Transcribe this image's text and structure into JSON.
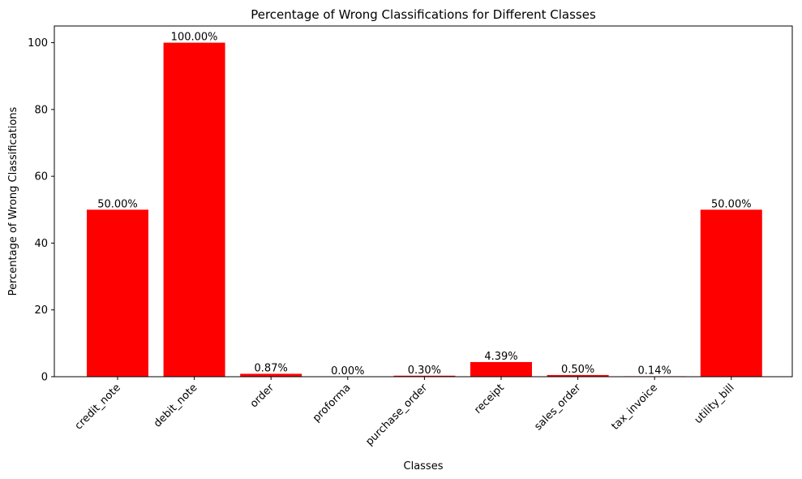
{
  "chart_data": {
    "type": "bar",
    "title": "Percentage of Wrong Classifications for Different Classes",
    "xlabel": "Classes",
    "ylabel": "Percentage of Wrong Classifications",
    "categories": [
      "credit_note",
      "debit_note",
      "order",
      "proforma",
      "purchase_order",
      "receipt",
      "sales_order",
      "tax_invoice",
      "utility_bill"
    ],
    "values": [
      50.0,
      100.0,
      0.87,
      0.0,
      0.3,
      4.39,
      0.5,
      0.14,
      50.0
    ],
    "data_labels": [
      "50.00%",
      "100.00%",
      "0.87%",
      "0.00%",
      "0.30%",
      "4.39%",
      "0.50%",
      "0.14%",
      "50.00%"
    ],
    "ylim": [
      0,
      105
    ],
    "yticks": [
      0,
      20,
      40,
      60,
      80,
      100
    ],
    "bar_color": "#ff0000",
    "grid": false,
    "legend": "none"
  }
}
